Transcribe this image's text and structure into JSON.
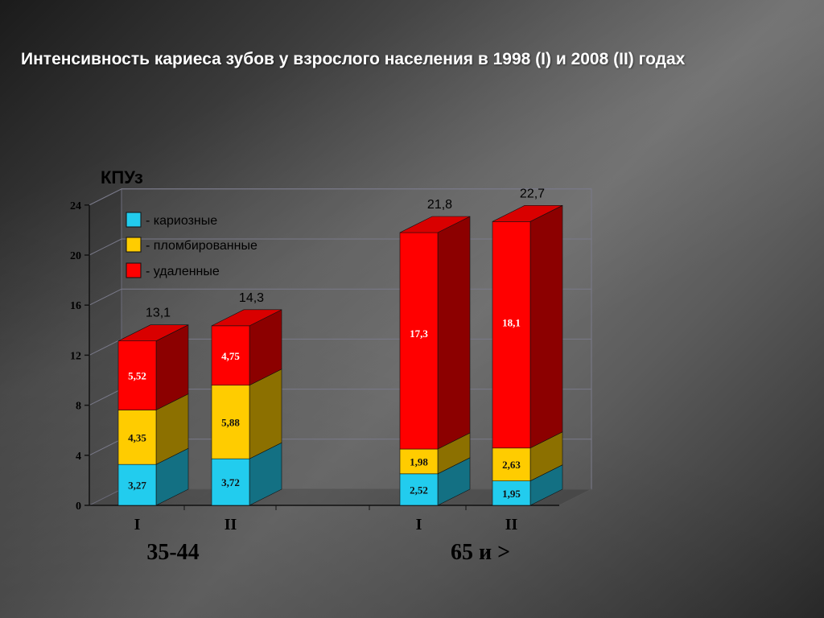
{
  "slide": {
    "title": "Интенсивность кариеса зубов у взрослого населения в 1998 (I) и 2008 (II) годах"
  },
  "chart_data": {
    "type": "bar",
    "stacked": true,
    "three_d": true,
    "ylabel": "КПУз",
    "ylim": [
      0,
      24
    ],
    "yticks": [
      "0",
      "4",
      "8",
      "12",
      "16",
      "20",
      "24"
    ],
    "grid": true,
    "legend_position": "top-left",
    "categories": [
      "I",
      "II",
      "I",
      "II"
    ],
    "groups": [
      {
        "label": "35-44",
        "categories": [
          "I",
          "II"
        ]
      },
      {
        "label": "65 и >",
        "categories": [
          "I",
          "II"
        ]
      }
    ],
    "series": [
      {
        "name": "- кариозные",
        "color": "#22ccee",
        "values": [
          3.27,
          3.72,
          2.52,
          1.95
        ],
        "labels": [
          "3,27",
          "3,72",
          "2,52",
          "1,95"
        ]
      },
      {
        "name": "- пломбированные",
        "color": "#ffcc00",
        "values": [
          4.35,
          5.88,
          1.98,
          2.63
        ],
        "labels": [
          "4,35",
          "5,88",
          "1,98",
          "2,63"
        ]
      },
      {
        "name": "- удаленные",
        "color": "#ff0000",
        "values": [
          5.52,
          4.75,
          17.3,
          18.1
        ],
        "labels": [
          "5,52",
          "4,75",
          "17,3",
          "18,1"
        ]
      }
    ],
    "totals": [
      "13,1",
      "14,3",
      "21,8",
      "22,7"
    ]
  }
}
